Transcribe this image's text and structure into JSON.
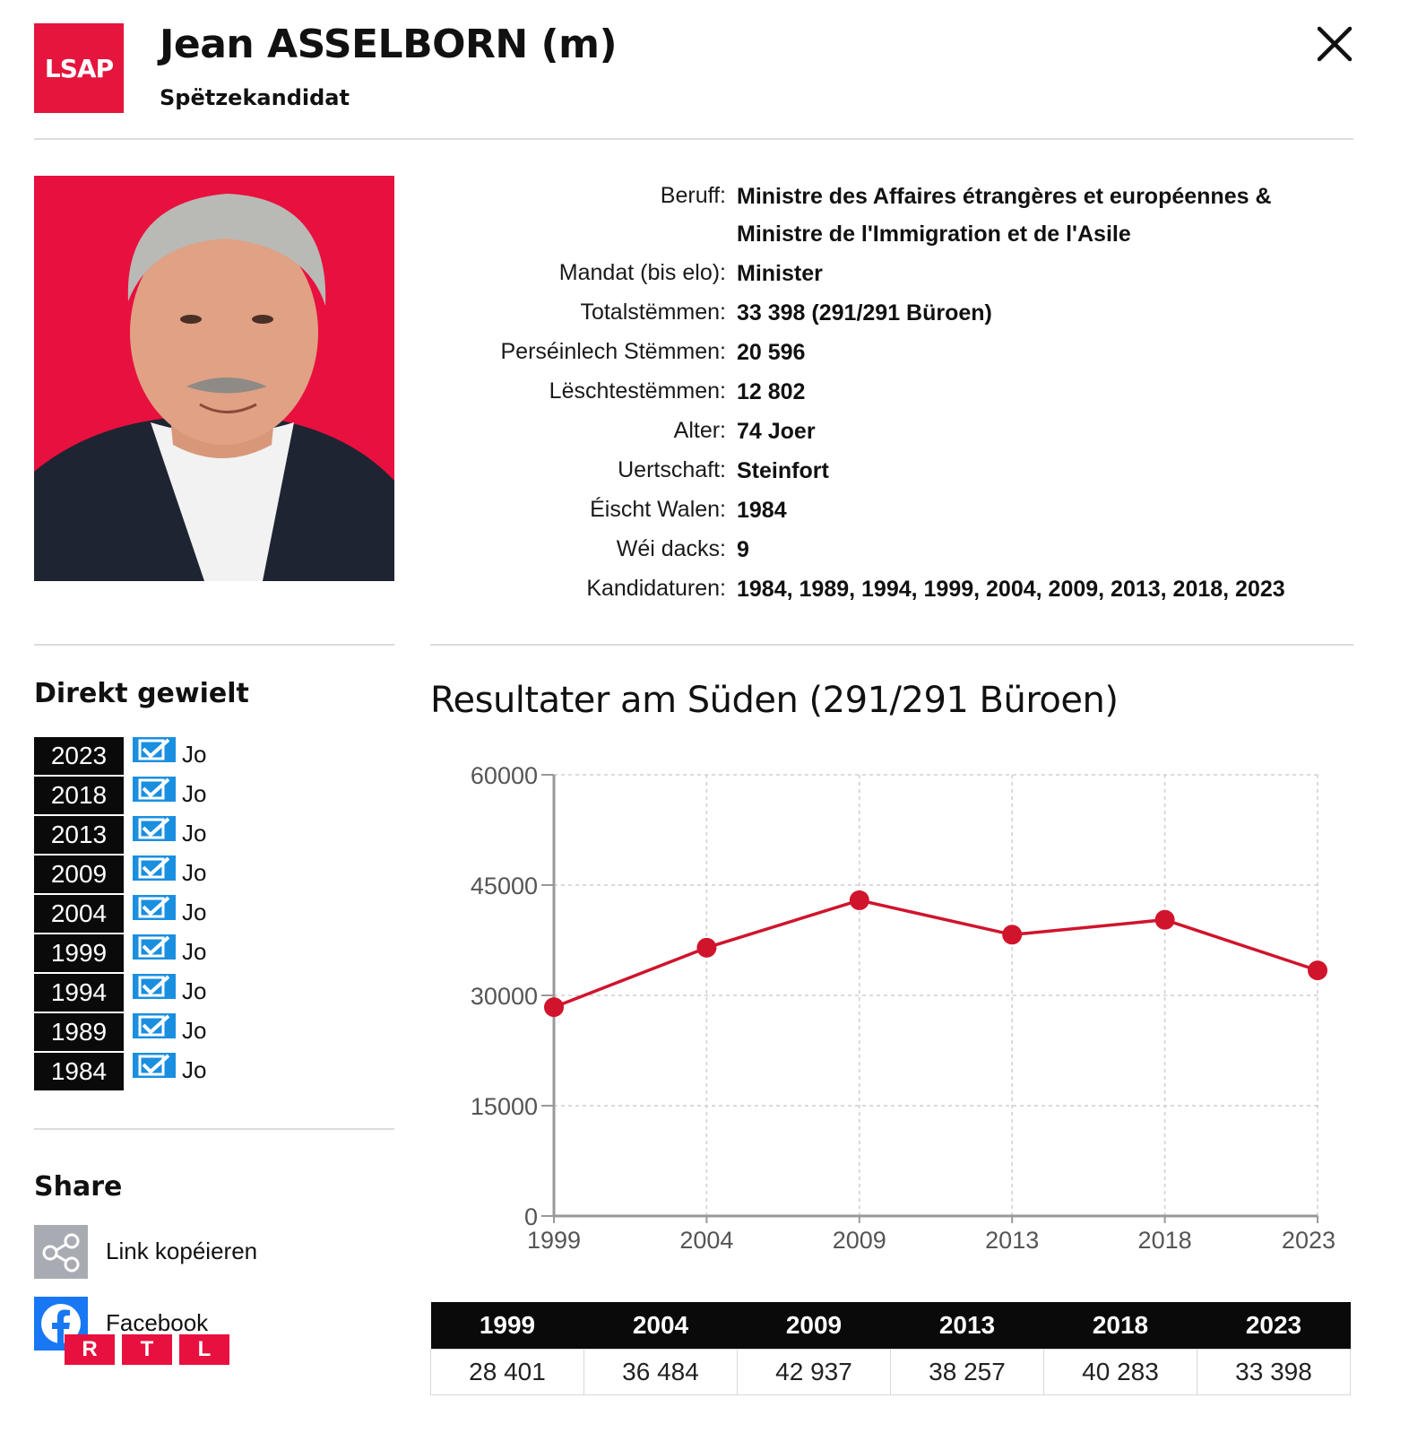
{
  "header": {
    "party": "LSAP",
    "name": "Jean ASSELBORN (m)",
    "role": "Spëtzekandidat",
    "close_icon": "close-icon",
    "party_color": "#e5153d"
  },
  "info": [
    {
      "label": "Beruff:",
      "value": "Ministre des Affaires étrangères et européennes & Ministre de l'Immigration et de l'Asile"
    },
    {
      "label": "Mandat (bis elo):",
      "value": "Minister"
    },
    {
      "label": "Totalstëmmen:",
      "value": "33 398 (291/291 Büroen)"
    },
    {
      "label": "Perséinlech Stëmmen:",
      "value": "20 596"
    },
    {
      "label": "Lëschtestëmmen:",
      "value": "12 802"
    },
    {
      "label": "Alter:",
      "value": "74 Joer"
    },
    {
      "label": "Uertschaft:",
      "value": "Steinfort"
    },
    {
      "label": "Éischt Walen:",
      "value": "1984"
    },
    {
      "label": "Wéi dacks:",
      "value": "9"
    },
    {
      "label": "Kandidaturen:",
      "value": "1984, 1989, 1994, 1999, 2004, 2009, 2013, 2018, 2023"
    }
  ],
  "direkt": {
    "title": "Direkt gewielt",
    "rows": [
      {
        "year": "2023",
        "value": "Jo"
      },
      {
        "year": "2018",
        "value": "Jo"
      },
      {
        "year": "2013",
        "value": "Jo"
      },
      {
        "year": "2009",
        "value": "Jo"
      },
      {
        "year": "2004",
        "value": "Jo"
      },
      {
        "year": "1999",
        "value": "Jo"
      },
      {
        "year": "1994",
        "value": "Jo"
      },
      {
        "year": "1989",
        "value": "Jo"
      },
      {
        "year": "1984",
        "value": "Jo"
      }
    ]
  },
  "share": {
    "title": "Share",
    "items": [
      {
        "label": "Link kopéieren",
        "icon": "share-link-icon"
      },
      {
        "label": "Facebook",
        "icon": "facebook-icon"
      }
    ]
  },
  "watermark": {
    "letters": [
      "R",
      "T",
      "L"
    ]
  },
  "chart": {
    "title": "Resultater am Süden (291/291 Büroen)"
  },
  "chart_data": {
    "type": "line",
    "categories": [
      "1999",
      "2004",
      "2009",
      "2013",
      "2018",
      "2023"
    ],
    "values": [
      28401,
      36484,
      42937,
      38257,
      40283,
      33398
    ],
    "ylim": [
      0,
      60000
    ],
    "yticks": [
      0,
      15000,
      30000,
      45000,
      60000
    ],
    "grid": true,
    "color": "#d0142c",
    "title": "Resultater am Süden (291/291 Büroen)",
    "xlabel": "",
    "ylabel": ""
  },
  "results_table": {
    "headers": [
      "1999",
      "2004",
      "2009",
      "2013",
      "2018",
      "2023"
    ],
    "values": [
      "28 401",
      "36 484",
      "42 937",
      "38 257",
      "40 283",
      "33 398"
    ]
  }
}
